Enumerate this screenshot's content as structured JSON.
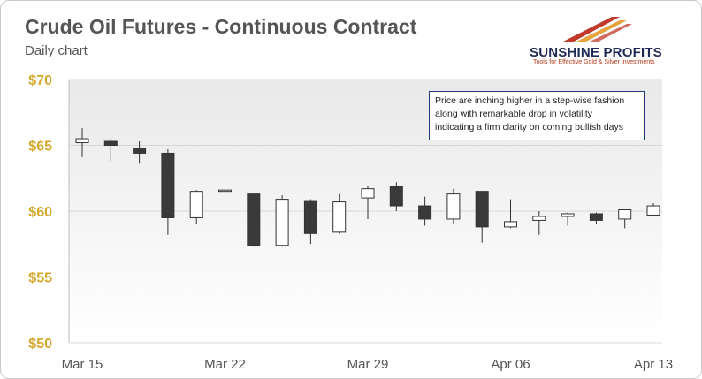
{
  "header": {
    "title": "Crude Oil Futures - Continuous Contract",
    "subtitle": "Daily chart"
  },
  "logo": {
    "name": "SUNSHINE PROFITS",
    "tagline": "Tools for Effective Gold & Silver Investments"
  },
  "annotation": {
    "lines": [
      "Price are inching higher in a step-wise fashion",
      "along with remarkable drop in volatility",
      "indicating a firm clarity on coming bullish days"
    ]
  },
  "colors": {
    "y_tick": "#d4a62a",
    "bear_fill": "#3a3a3a",
    "bull_fill": "#ffffff",
    "candle_stroke": "#333333",
    "annotation_border": "#1e3a7a",
    "logo_navy": "#1f2a55",
    "logo_red": "#c0392b"
  },
  "chart_data": {
    "type": "candlestick",
    "title": "Crude Oil Futures - Continuous Contract",
    "subtitle": "Daily chart",
    "ylim": [
      50,
      70
    ],
    "yticks": [
      50,
      55,
      60,
      65,
      70
    ],
    "ytick_labels": [
      "$50",
      "$55",
      "$60",
      "$65",
      "$70"
    ],
    "xtick_labels": [
      {
        "label": "Mar 15",
        "index": 0
      },
      {
        "label": "Mar 22",
        "index": 5
      },
      {
        "label": "Mar 29",
        "index": 10
      },
      {
        "label": "Apr 06",
        "index": 15
      },
      {
        "label": "Apr 13",
        "index": 20
      }
    ],
    "grid": true,
    "candles": [
      {
        "o": 65.2,
        "h": 66.3,
        "l": 64.1,
        "c": 65.5
      },
      {
        "o": 65.3,
        "h": 65.5,
        "l": 63.8,
        "c": 65.0
      },
      {
        "o": 64.8,
        "h": 65.3,
        "l": 63.6,
        "c": 64.4
      },
      {
        "o": 64.4,
        "h": 64.7,
        "l": 58.2,
        "c": 59.5
      },
      {
        "o": 59.5,
        "h": 61.6,
        "l": 59.0,
        "c": 61.5
      },
      {
        "o": 61.5,
        "h": 61.9,
        "l": 60.4,
        "c": 61.6
      },
      {
        "o": 61.3,
        "h": 61.3,
        "l": 57.3,
        "c": 57.4
      },
      {
        "o": 57.4,
        "h": 61.2,
        "l": 57.3,
        "c": 60.9
      },
      {
        "o": 60.8,
        "h": 60.9,
        "l": 57.5,
        "c": 58.3
      },
      {
        "o": 58.4,
        "h": 61.3,
        "l": 58.3,
        "c": 60.7
      },
      {
        "o": 61.0,
        "h": 61.9,
        "l": 59.4,
        "c": 61.7
      },
      {
        "o": 61.9,
        "h": 62.2,
        "l": 60.0,
        "c": 60.4
      },
      {
        "o": 60.4,
        "h": 61.1,
        "l": 58.9,
        "c": 59.4
      },
      {
        "o": 59.4,
        "h": 61.7,
        "l": 59.0,
        "c": 61.3
      },
      {
        "o": 61.5,
        "h": 61.5,
        "l": 57.6,
        "c": 58.8
      },
      {
        "o": 58.8,
        "h": 60.9,
        "l": 58.7,
        "c": 59.2
      },
      {
        "o": 59.3,
        "h": 60.0,
        "l": 58.2,
        "c": 59.6
      },
      {
        "o": 59.6,
        "h": 59.9,
        "l": 58.9,
        "c": 59.8
      },
      {
        "o": 59.8,
        "h": 59.9,
        "l": 59.0,
        "c": 59.3
      },
      {
        "o": 59.4,
        "h": 60.1,
        "l": 58.7,
        "c": 60.1
      },
      {
        "o": 59.7,
        "h": 60.6,
        "l": 59.6,
        "c": 60.4
      }
    ]
  }
}
